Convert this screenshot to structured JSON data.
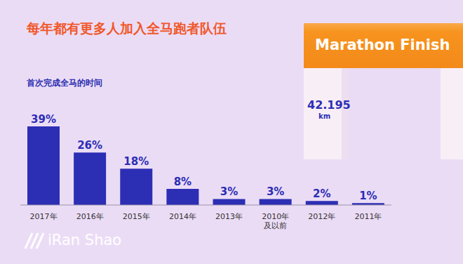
{
  "chart_data": {
    "type": "bar",
    "title": "每年都有更多人加入全马跑者队伍",
    "subtitle": "首次完成全马的时间",
    "categories": [
      "2017年",
      "2016年",
      "2015年",
      "2014年",
      "2013年",
      "2010年及以前",
      "2012年",
      "2011年"
    ],
    "values": [
      39,
      26,
      18,
      8,
      3,
      3,
      2,
      1
    ],
    "value_labels": [
      "39%",
      "26%",
      "18%",
      "8%",
      "3%",
      "3%",
      "2%",
      "1%"
    ],
    "data_labels": true,
    "color": "#2c2eb4",
    "ylim": [
      0,
      40
    ],
    "tick_labels": "x",
    "grid": false,
    "annotations": [
      "Marathon Finish",
      "42.195",
      "km",
      "iRan Shao"
    ]
  }
}
